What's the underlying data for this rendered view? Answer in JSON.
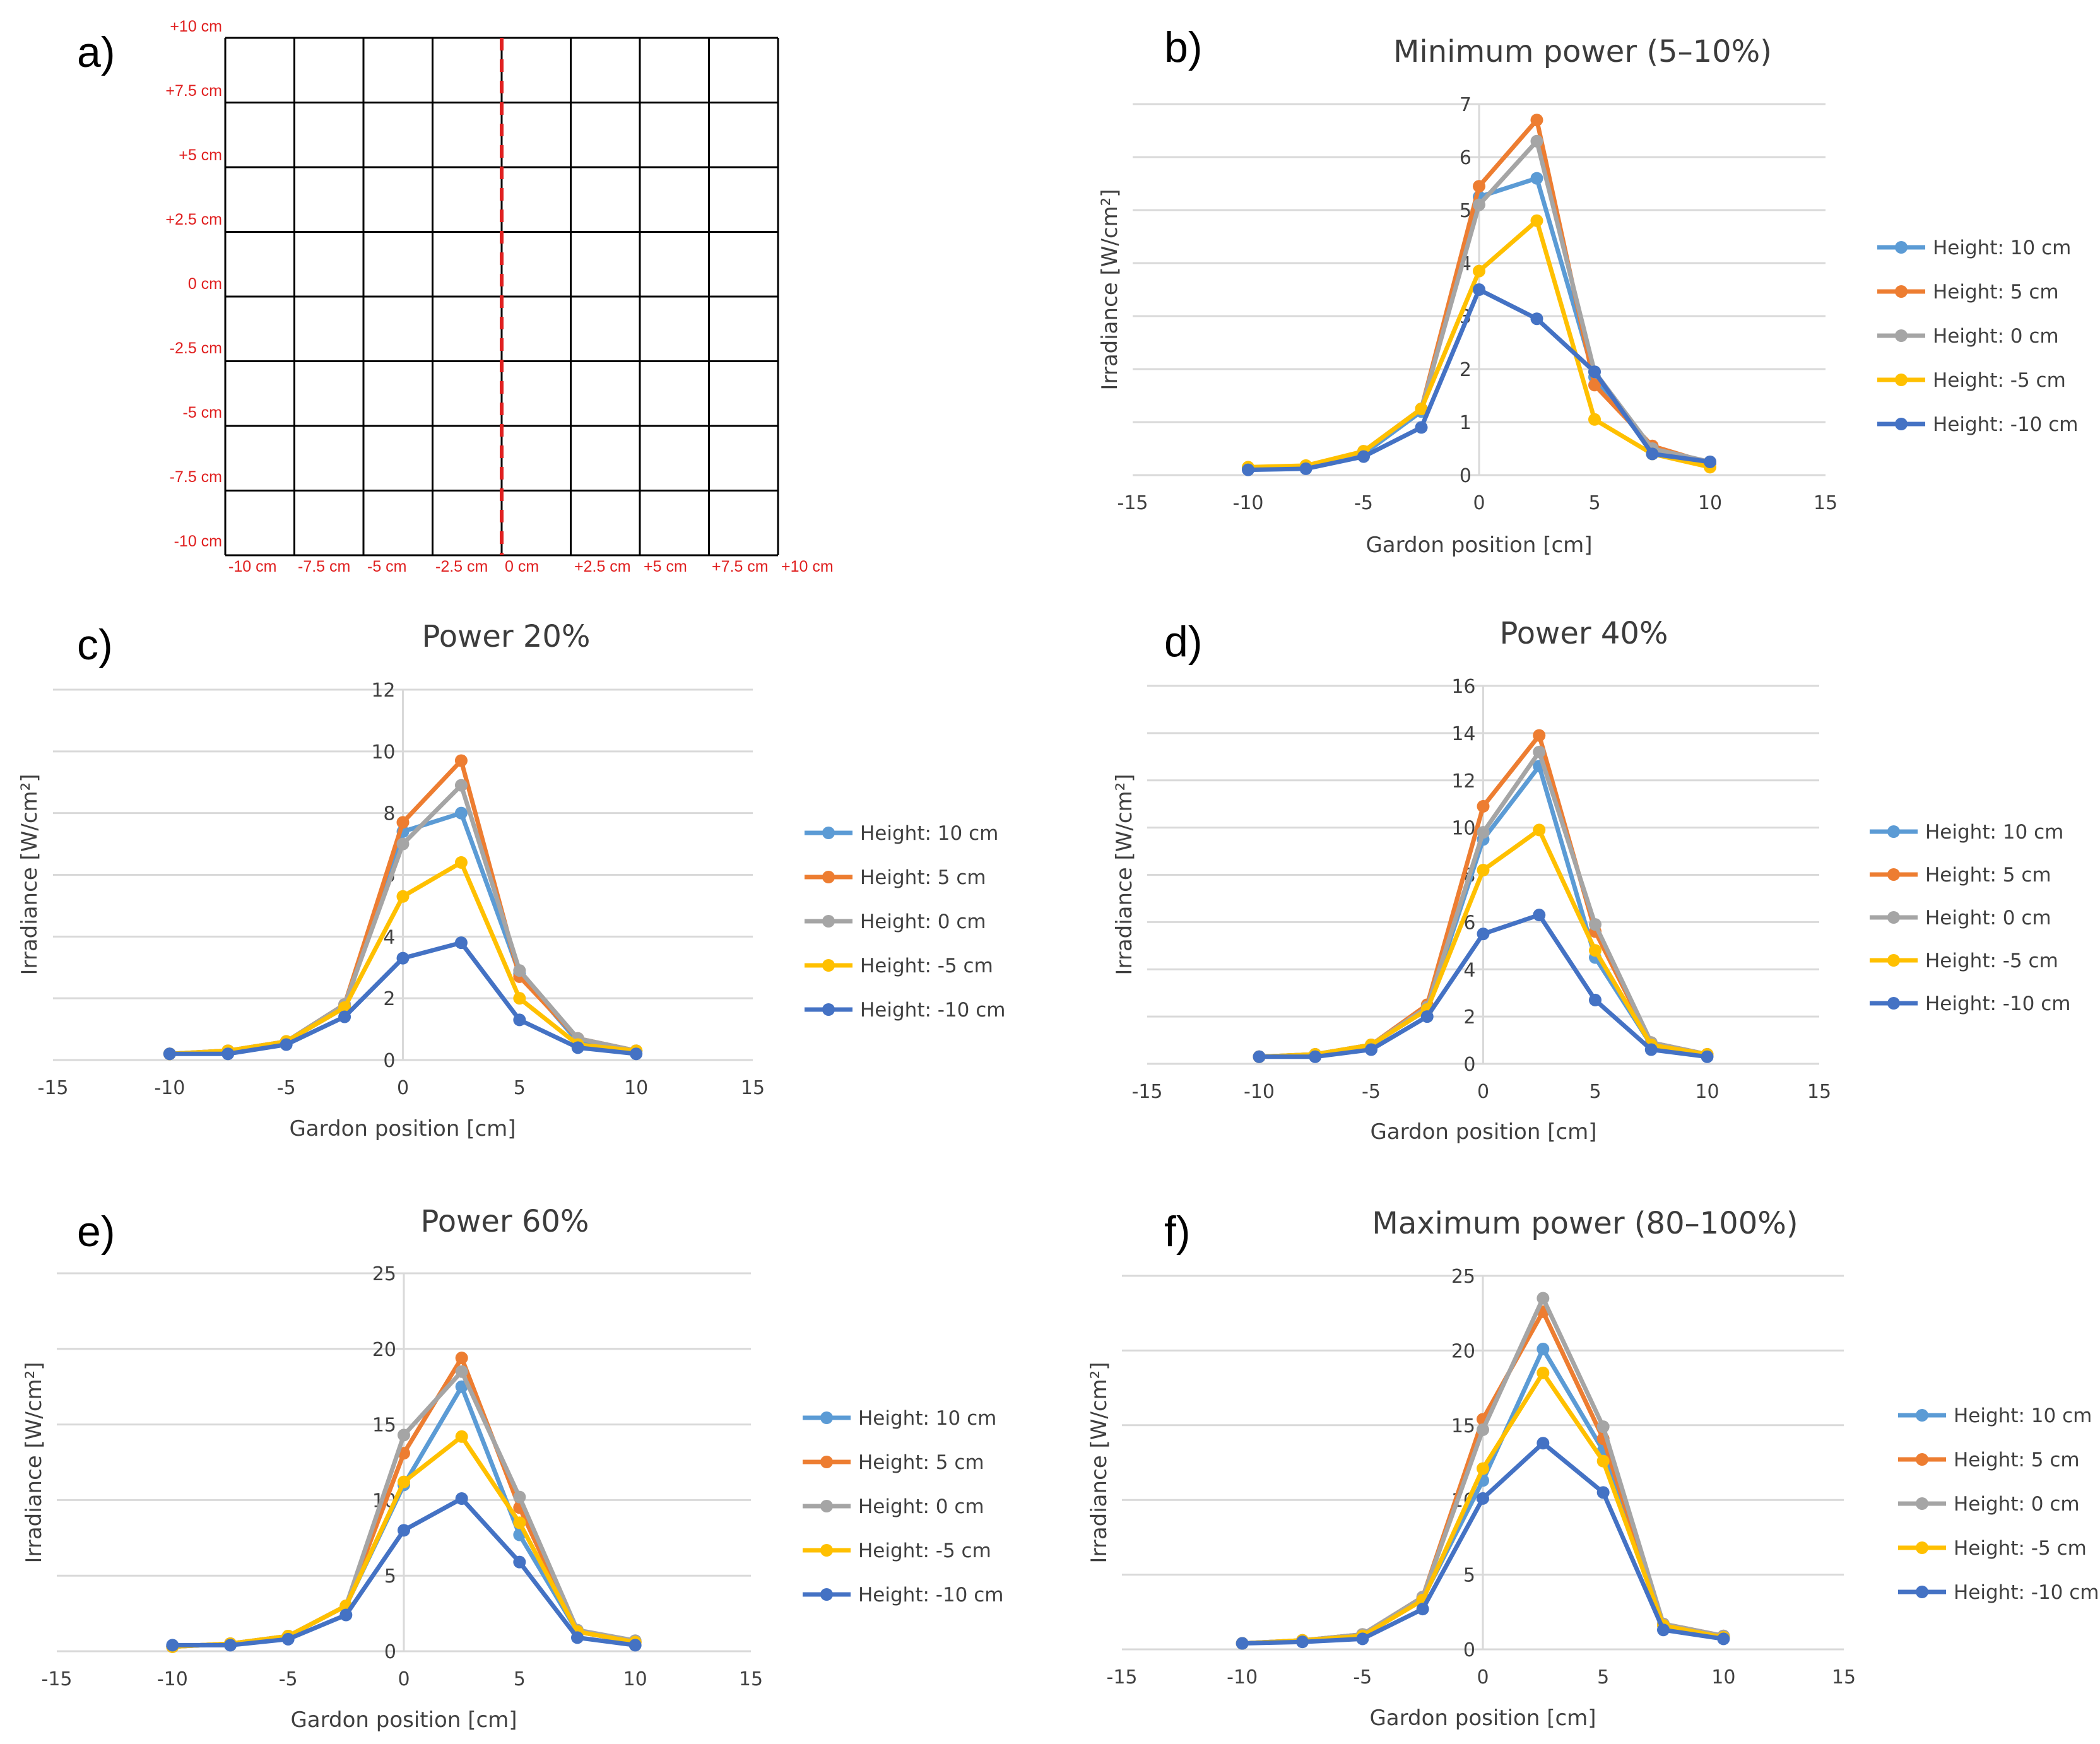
{
  "colors": {
    "h10": "#5b9bd5",
    "h5": "#ed7d31",
    "h0": "#a5a5a5",
    "hm5": "#ffc000",
    "hm10": "#4472c4",
    "grid_line": "#d9d9d9",
    "center_line": "#e02020"
  },
  "panel_a": {
    "letter": "a)",
    "y_labels": [
      "+10 cm",
      "+7.5 cm",
      "+5 cm",
      "+2.5 cm",
      "0 cm",
      "-2.5 cm",
      "-5 cm",
      "-7.5 cm",
      "-10 cm"
    ],
    "x_labels": [
      "-10 cm",
      "-7.5 cm",
      "-5 cm",
      "-2.5 cm",
      "0 cm",
      "+2.5 cm",
      "+5 cm",
      "+7.5 cm",
      "+10 cm"
    ]
  },
  "chart_data": [
    {
      "id": "b",
      "letter": "b)",
      "type": "line",
      "title": "Minimum power (5–10%)",
      "xlabel": "Gardon position [cm]",
      "ylabel": "Irradiance [W/cm²]",
      "xlim": [
        -15,
        15
      ],
      "ylim": [
        0,
        7
      ],
      "xticks": [
        -15,
        -10,
        -5,
        0,
        5,
        10,
        15
      ],
      "yticks": [
        0,
        1,
        2,
        3,
        4,
        5,
        6,
        7
      ],
      "x": [
        -10,
        -7.5,
        -5,
        -2.5,
        0,
        2.5,
        5,
        7.5,
        10
      ],
      "series": [
        {
          "name": "Height: 10 cm",
          "color_key": "h10",
          "values": [
            0.12,
            0.15,
            0.4,
            1.2,
            5.25,
            5.6,
            1.85,
            0.45,
            0.22
          ]
        },
        {
          "name": "Height: 5 cm",
          "color_key": "h5",
          "values": [
            0.12,
            0.15,
            0.45,
            1.25,
            5.45,
            6.7,
            1.7,
            0.55,
            0.22
          ]
        },
        {
          "name": "Height: 0 cm",
          "color_key": "h0",
          "values": [
            0.12,
            0.16,
            0.45,
            1.25,
            5.1,
            6.3,
            1.95,
            0.5,
            0.25
          ]
        },
        {
          "name": "Height: -5 cm",
          "color_key": "hm5",
          "values": [
            0.15,
            0.18,
            0.45,
            1.25,
            3.85,
            4.8,
            1.05,
            0.4,
            0.15
          ]
        },
        {
          "name": "Height: -10 cm",
          "color_key": "hm10",
          "values": [
            0.1,
            0.12,
            0.35,
            0.9,
            3.5,
            2.95,
            1.95,
            0.4,
            0.25
          ]
        }
      ]
    },
    {
      "id": "c",
      "letter": "c)",
      "type": "line",
      "title": "Power 20%",
      "xlabel": "Gardon position [cm]",
      "ylabel": "Irradiance [W/cm²]",
      "xlim": [
        -15,
        15
      ],
      "ylim": [
        0,
        12
      ],
      "xticks": [
        -15,
        -10,
        -5,
        0,
        5,
        10,
        15
      ],
      "yticks": [
        0,
        2,
        4,
        6,
        8,
        10,
        12
      ],
      "x": [
        -10,
        -7.5,
        -5,
        -2.5,
        0,
        2.5,
        5,
        7.5,
        10
      ],
      "series": [
        {
          "name": "Height: 10 cm",
          "color_key": "h10",
          "values": [
            0.2,
            0.3,
            0.6,
            1.7,
            7.4,
            8.0,
            2.8,
            0.6,
            0.3
          ]
        },
        {
          "name": "Height: 5 cm",
          "color_key": "h5",
          "values": [
            0.2,
            0.3,
            0.6,
            1.8,
            7.7,
            9.7,
            2.7,
            0.7,
            0.3
          ]
        },
        {
          "name": "Height: 0 cm",
          "color_key": "h0",
          "values": [
            0.2,
            0.3,
            0.6,
            1.8,
            7.0,
            8.9,
            2.9,
            0.7,
            0.3
          ]
        },
        {
          "name": "Height: -5 cm",
          "color_key": "hm5",
          "values": [
            0.2,
            0.3,
            0.6,
            1.7,
            5.3,
            6.4,
            2.0,
            0.5,
            0.3
          ]
        },
        {
          "name": "Height: -10 cm",
          "color_key": "hm10",
          "values": [
            0.2,
            0.2,
            0.5,
            1.4,
            3.3,
            3.8,
            1.3,
            0.4,
            0.2
          ]
        }
      ]
    },
    {
      "id": "d",
      "letter": "d)",
      "type": "line",
      "title": "Power 40%",
      "xlabel": "Gardon position [cm]",
      "ylabel": "Irradiance [W/cm²]",
      "xlim": [
        -15,
        15
      ],
      "ylim": [
        0,
        16
      ],
      "xticks": [
        -15,
        -10,
        -5,
        0,
        5,
        10,
        15
      ],
      "yticks": [
        0,
        2,
        4,
        6,
        8,
        10,
        12,
        14,
        16
      ],
      "x": [
        -10,
        -7.5,
        -5,
        -2.5,
        0,
        2.5,
        5,
        7.5,
        10
      ],
      "series": [
        {
          "name": "Height: 10 cm",
          "color_key": "h10",
          "values": [
            0.3,
            0.4,
            0.8,
            2.3,
            9.5,
            12.6,
            4.5,
            0.8,
            0.4
          ]
        },
        {
          "name": "Height: 5 cm",
          "color_key": "h5",
          "values": [
            0.3,
            0.4,
            0.8,
            2.5,
            10.9,
            13.9,
            5.6,
            0.9,
            0.4
          ]
        },
        {
          "name": "Height: 0 cm",
          "color_key": "h0",
          "values": [
            0.3,
            0.4,
            0.8,
            2.4,
            9.8,
            13.2,
            5.9,
            0.9,
            0.4
          ]
        },
        {
          "name": "Height: -5 cm",
          "color_key": "hm5",
          "values": [
            0.3,
            0.4,
            0.8,
            2.3,
            8.2,
            9.9,
            4.8,
            0.8,
            0.4
          ]
        },
        {
          "name": "Height: -10 cm",
          "color_key": "hm10",
          "values": [
            0.3,
            0.3,
            0.6,
            2.0,
            5.5,
            6.3,
            2.7,
            0.6,
            0.3
          ]
        }
      ]
    },
    {
      "id": "e",
      "letter": "e)",
      "type": "line",
      "title": "Power 60%",
      "xlabel": "Gardon position [cm]",
      "ylabel": "Irradiance [W/cm²]",
      "xlim": [
        -15,
        15
      ],
      "ylim": [
        0,
        25
      ],
      "xticks": [
        -15,
        -10,
        -5,
        0,
        5,
        10,
        15
      ],
      "yticks": [
        0,
        5,
        10,
        15,
        20,
        25
      ],
      "x": [
        -10,
        -7.5,
        -5,
        -2.5,
        0,
        2.5,
        5,
        7.5,
        10
      ],
      "series": [
        {
          "name": "Height: 10 cm",
          "color_key": "h10",
          "values": [
            0.3,
            0.5,
            1.0,
            3.0,
            11.0,
            17.5,
            7.7,
            1.3,
            0.6
          ]
        },
        {
          "name": "Height: 5 cm",
          "color_key": "h5",
          "values": [
            0.3,
            0.5,
            1.0,
            3.0,
            13.1,
            19.4,
            9.5,
            1.3,
            0.6
          ]
        },
        {
          "name": "Height: 0 cm",
          "color_key": "h0",
          "values": [
            0.3,
            0.5,
            1.0,
            3.0,
            14.3,
            18.5,
            10.2,
            1.4,
            0.7
          ]
        },
        {
          "name": "Height: -5 cm",
          "color_key": "hm5",
          "values": [
            0.3,
            0.5,
            1.0,
            3.0,
            11.2,
            14.2,
            8.5,
            1.3,
            0.6
          ]
        },
        {
          "name": "Height: -10 cm",
          "color_key": "hm10",
          "values": [
            0.4,
            0.4,
            0.8,
            2.4,
            8.0,
            10.1,
            5.9,
            0.9,
            0.4
          ]
        }
      ]
    },
    {
      "id": "f",
      "letter": "f)",
      "type": "line",
      "title": "Maximum power (80–100%)",
      "xlabel": "Gardon position [cm]",
      "ylabel": "Irradiance [W/cm²]",
      "xlim": [
        -15,
        15
      ],
      "ylim": [
        0,
        25
      ],
      "xticks": [
        -15,
        -10,
        -5,
        0,
        5,
        10,
        15
      ],
      "yticks": [
        0,
        5,
        10,
        15,
        20,
        25
      ],
      "x": [
        -10,
        -7.5,
        -5,
        -2.5,
        0,
        2.5,
        5,
        7.5,
        10
      ],
      "series": [
        {
          "name": "Height: 10 cm",
          "color_key": "h10",
          "values": [
            0.4,
            0.6,
            1.0,
            3.4,
            11.3,
            20.1,
            13.3,
            1.6,
            0.8
          ]
        },
        {
          "name": "Height: 5 cm",
          "color_key": "h5",
          "values": [
            0.4,
            0.6,
            1.0,
            3.5,
            15.4,
            22.6,
            14.1,
            1.7,
            0.9
          ]
        },
        {
          "name": "Height: 0 cm",
          "color_key": "h0",
          "values": [
            0.4,
            0.6,
            1.0,
            3.5,
            14.7,
            23.5,
            14.9,
            1.7,
            0.9
          ]
        },
        {
          "name": "Height: -5 cm",
          "color_key": "hm5",
          "values": [
            0.4,
            0.6,
            0.9,
            3.3,
            12.1,
            18.5,
            12.6,
            1.6,
            0.8
          ]
        },
        {
          "name": "Height: -10 cm",
          "color_key": "hm10",
          "values": [
            0.4,
            0.5,
            0.7,
            2.7,
            10.1,
            13.8,
            10.5,
            1.3,
            0.7
          ]
        }
      ]
    }
  ]
}
